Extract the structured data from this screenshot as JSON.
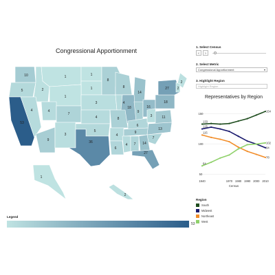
{
  "map": {
    "title": "Congressional Apportionment",
    "states": [
      {
        "code": "WA",
        "value": "10"
      },
      {
        "code": "OR",
        "value": "5"
      },
      {
        "code": "ID",
        "value": "2"
      },
      {
        "code": "MT",
        "value": "1"
      },
      {
        "code": "ND",
        "value": "1"
      },
      {
        "code": "SD",
        "value": "1"
      },
      {
        "code": "MN",
        "value": "8"
      },
      {
        "code": "WI",
        "value": "8"
      },
      {
        "code": "MI",
        "value": "14"
      },
      {
        "code": "WY",
        "value": "1"
      },
      {
        "code": "NE",
        "value": "3"
      },
      {
        "code": "IA",
        "value": "4"
      },
      {
        "code": "IL",
        "value": "18"
      },
      {
        "code": "IN",
        "value": "9"
      },
      {
        "code": "OH",
        "value": "16"
      },
      {
        "code": "PA",
        "value": "18"
      },
      {
        "code": "NY",
        "value": "27"
      },
      {
        "code": "NV",
        "value": "4"
      },
      {
        "code": "UT",
        "value": "4"
      },
      {
        "code": "CO",
        "value": "7"
      },
      {
        "code": "KS",
        "value": "4"
      },
      {
        "code": "MO",
        "value": "8"
      },
      {
        "code": "KY",
        "value": "6"
      },
      {
        "code": "WV",
        "value": "3"
      },
      {
        "code": "VA",
        "value": "11"
      },
      {
        "code": "CA",
        "value": "53"
      },
      {
        "code": "AZ",
        "value": "9"
      },
      {
        "code": "NM",
        "value": "3"
      },
      {
        "code": "OK",
        "value": "5"
      },
      {
        "code": "AR",
        "value": "4"
      },
      {
        "code": "TN",
        "value": "9"
      },
      {
        "code": "NC",
        "value": "13"
      },
      {
        "code": "SC",
        "value": "7"
      },
      {
        "code": "TX",
        "value": "36"
      },
      {
        "code": "LA",
        "value": "6"
      },
      {
        "code": "MS",
        "value": "4"
      },
      {
        "code": "AL",
        "value": "7"
      },
      {
        "code": "GA",
        "value": "14"
      },
      {
        "code": "FL",
        "value": "27"
      },
      {
        "code": "ME",
        "value": "2"
      },
      {
        "code": "NH",
        "value": "2"
      },
      {
        "code": "AK",
        "value": "1"
      },
      {
        "code": "HI",
        "value": "2"
      }
    ]
  },
  "controls": {
    "census_label": "1. Select Census",
    "metric_label": "2. Select Metric",
    "metric_value": "Congressional Apportionment",
    "region_label": "3. Highlight Region",
    "region_placeholder": "Highlight Region"
  },
  "legend": {
    "title": "Legend",
    "min": "1",
    "max": "53"
  },
  "region_legend": {
    "title": "Region",
    "items": [
      {
        "name": "South",
        "color": "#1f4d1f"
      },
      {
        "name": "Midwest",
        "color": "#1a1a6e"
      },
      {
        "name": "Northeast",
        "color": "#f28e2b"
      },
      {
        "name": "West",
        "color": "#8fd16a"
      }
    ]
  },
  "chart_data": {
    "type": "line",
    "title": "Representatives by Region",
    "xlabel": "Census",
    "ylabel": "",
    "x": [
      1940,
      1950,
      1960,
      1970,
      1980,
      1990,
      2000,
      2010
    ],
    "x_ticks": [
      "1940",
      "1970",
      "1980",
      "1990",
      "2000",
      "2010"
    ],
    "y_ticks": [
      "50",
      "100",
      "150"
    ],
    "ylim": [
      45,
      162
    ],
    "series": [
      {
        "name": "South",
        "color": "#1f4d1f",
        "values": [
          133,
          134,
          133,
          134,
          138,
          142,
          148,
          154
        ],
        "start_label": "133",
        "end_label": "154"
      },
      {
        "name": "Midwest",
        "color": "#1a1a6e",
        "values": [
          125,
          128,
          125,
          121,
          113,
          105,
          100,
          94
        ],
        "start_label": "125",
        "end_label": "94"
      },
      {
        "name": "Northeast",
        "color": "#f28e2b",
        "values": [
          115,
          111,
          108,
          104,
          95,
          88,
          83,
          78
        ],
        "start_label": "115",
        "end_label": "78"
      },
      {
        "name": "West",
        "color": "#8fd16a",
        "values": [
          64,
          70,
          77,
          82,
          92,
          99,
          100,
          102
        ],
        "start_label": "64",
        "end_label": "102"
      }
    ]
  }
}
